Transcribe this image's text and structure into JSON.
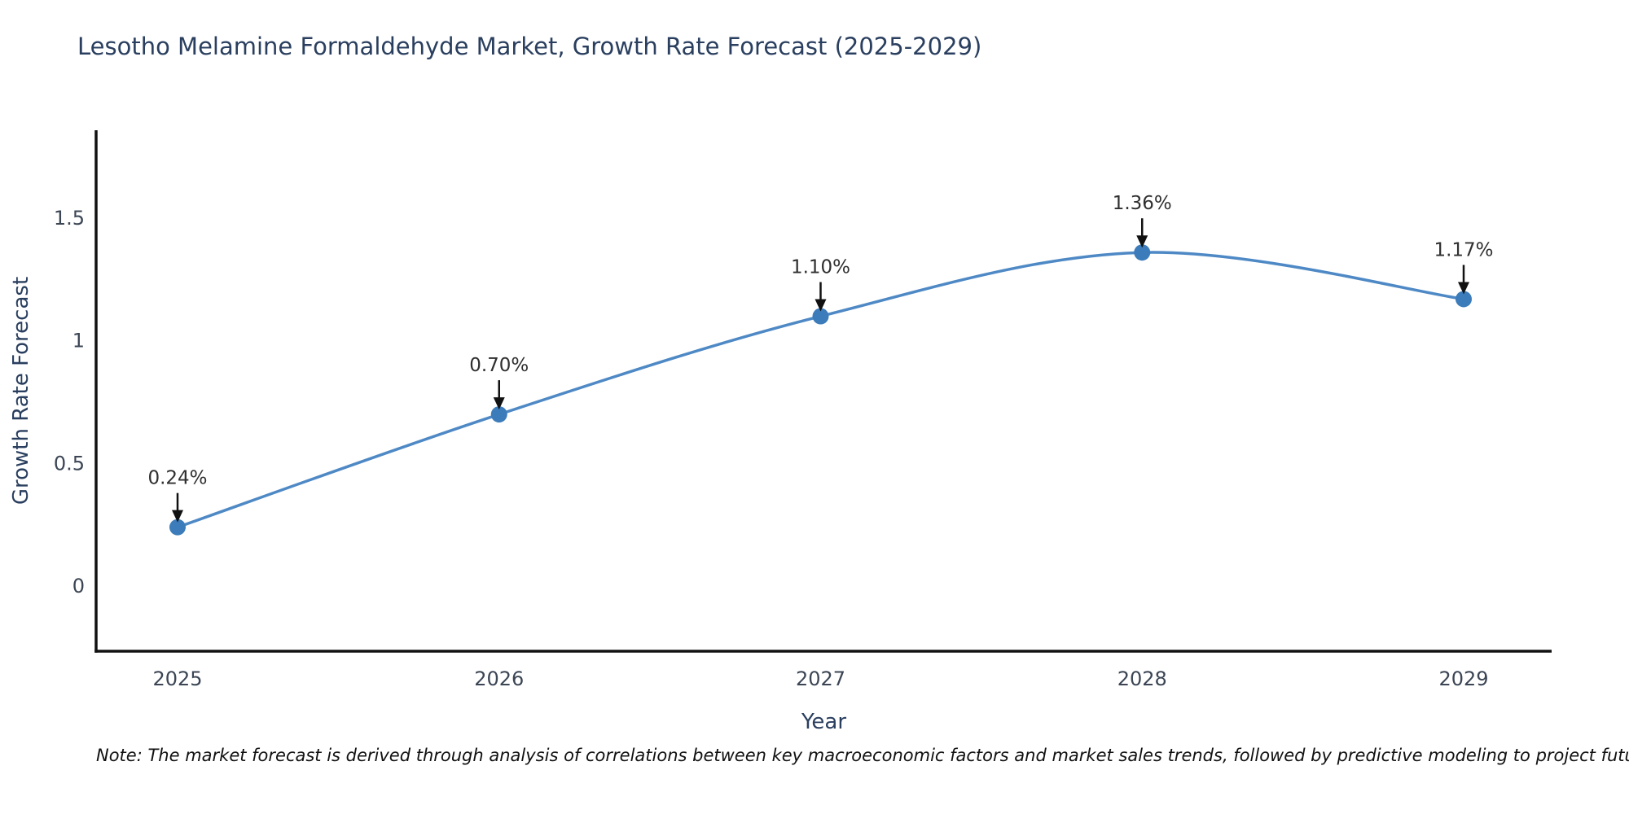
{
  "title": "Lesotho Melamine Formaldehyde Market, Growth Rate Forecast (2025-2029)",
  "note": "Note: The market forecast is derived through analysis of correlations between key macroeconomic factors and market sales trends, followed by predictive modeling to project future sales",
  "chart_data": {
    "type": "line",
    "line_shape": "spline",
    "categories": [
      "2025",
      "2026",
      "2027",
      "2028",
      "2029"
    ],
    "x": [
      2025,
      2026,
      2027,
      2028,
      2029
    ],
    "series": [
      {
        "name": "Growth Rate Forecast",
        "values": [
          0.24,
          0.7,
          1.1,
          1.36,
          1.17
        ]
      }
    ],
    "point_labels": [
      "0.24%",
      "0.70%",
      "1.10%",
      "1.36%",
      "1.17%"
    ],
    "xlabel": "Year",
    "ylabel": "Growth Rate Forecast",
    "yticks": [
      0,
      0.5,
      1,
      1.5
    ],
    "ytick_labels": [
      "0",
      "0.5",
      "1",
      "1.5"
    ],
    "ylim": [
      -0.27,
      1.86
    ],
    "grid": false,
    "legend": "none",
    "colors": {
      "line": "#4e89c5",
      "marker": "#3c7cba",
      "axis": "#111111",
      "title": "#2a3f5f",
      "axis_title": "#2a3f5f",
      "tick": "#3b4554",
      "annotation_text": "#2f2f2f",
      "arrow": "#111111",
      "background": "#ffffff"
    }
  }
}
